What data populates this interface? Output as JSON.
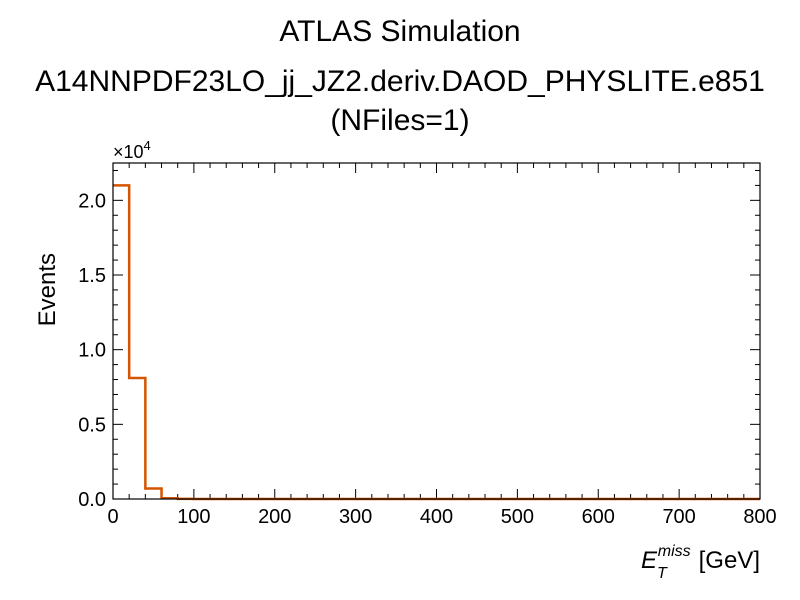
{
  "chart_data": {
    "type": "histogram",
    "title_lines": [
      "ATLAS Simulation",
      "A14NNPDF23LO_jj_JZ2.deriv.DAOD_PHYSLITE.e851",
      "(NFiles=1)"
    ],
    "xlabel": "[GeV]",
    "xlabel_symbol": {
      "base": "E",
      "sub": "T",
      "sup": "miss"
    },
    "ylabel": "Events",
    "y_multiplier_text": {
      "base": "×10",
      "exp": "4"
    },
    "xlim": [
      0,
      800
    ],
    "ylim": [
      0,
      2.25
    ],
    "y_scale_factor": 10000,
    "x_ticks": [
      "0",
      "100",
      "200",
      "300",
      "400",
      "500",
      "600",
      "700",
      "800"
    ],
    "y_ticks": [
      "0.0",
      "0.5",
      "1.0",
      "1.5",
      "2.0"
    ],
    "bin_width": 20,
    "bin_edges_start": 0,
    "values": [
      2.1,
      0.81,
      0.07,
      0.005,
      0.001
    ],
    "line_color": "#d45500",
    "grid": false,
    "legend": "none"
  }
}
